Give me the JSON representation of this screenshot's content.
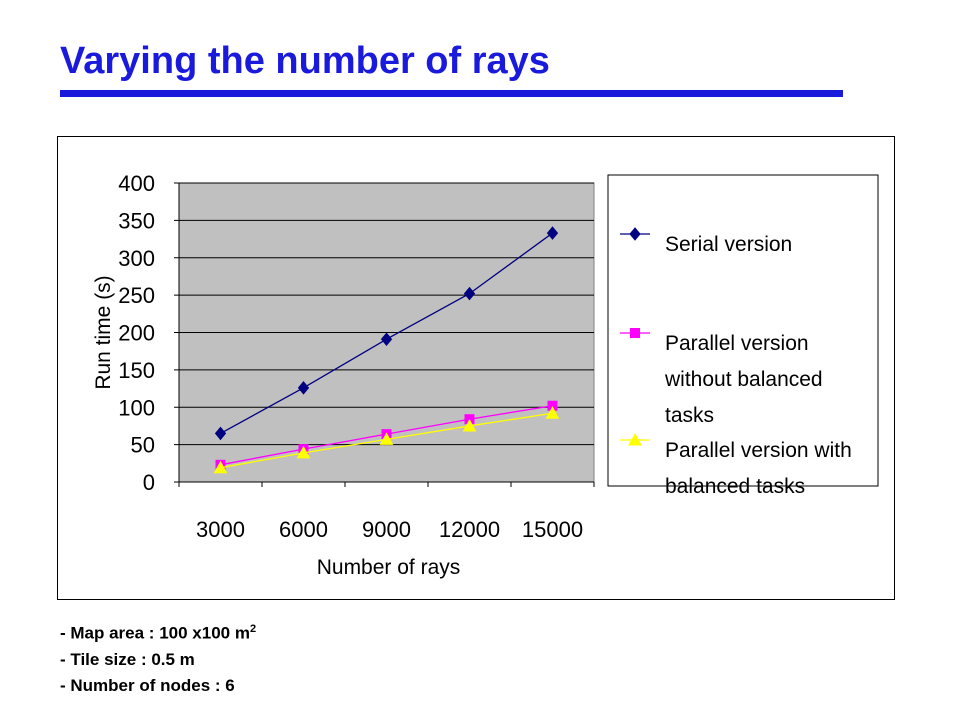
{
  "slide": {
    "title": "Varying the number of rays"
  },
  "chart_data": {
    "type": "line",
    "title": "",
    "xlabel": "Number of rays",
    "ylabel": "Run time (s)",
    "categories": [
      "3000",
      "6000",
      "9000",
      "12000",
      "15000"
    ],
    "ylim": [
      0,
      400
    ],
    "yticks": [
      "0",
      "50",
      "100",
      "150",
      "200",
      "250",
      "300",
      "350",
      "400"
    ],
    "grid": true,
    "legend_position": "right",
    "series": [
      {
        "name": "Serial version",
        "values": [
          65,
          126,
          191,
          252,
          333
        ],
        "color": "#000080",
        "marker": "diamond"
      },
      {
        "name": "Parallel version without balanced tasks",
        "legend_lines": [
          "Parallel version",
          "without balanced",
          "tasks"
        ],
        "values": [
          23,
          44,
          64,
          84,
          102
        ],
        "color": "#ff00ff",
        "marker": "square"
      },
      {
        "name": "Parallel version with balanced tasks",
        "legend_lines": [
          "Parallel version with",
          "balanced tasks"
        ],
        "values": [
          19,
          39,
          57,
          75,
          92
        ],
        "color": "#ffff00",
        "marker": "triangle"
      }
    ]
  },
  "notes": {
    "map_area_prefix": "- Map area : 100 x100 m",
    "map_area_sup": "2",
    "tile_size": "- Tile size : 0.5 m",
    "num_nodes": "- Number of nodes : 6"
  }
}
